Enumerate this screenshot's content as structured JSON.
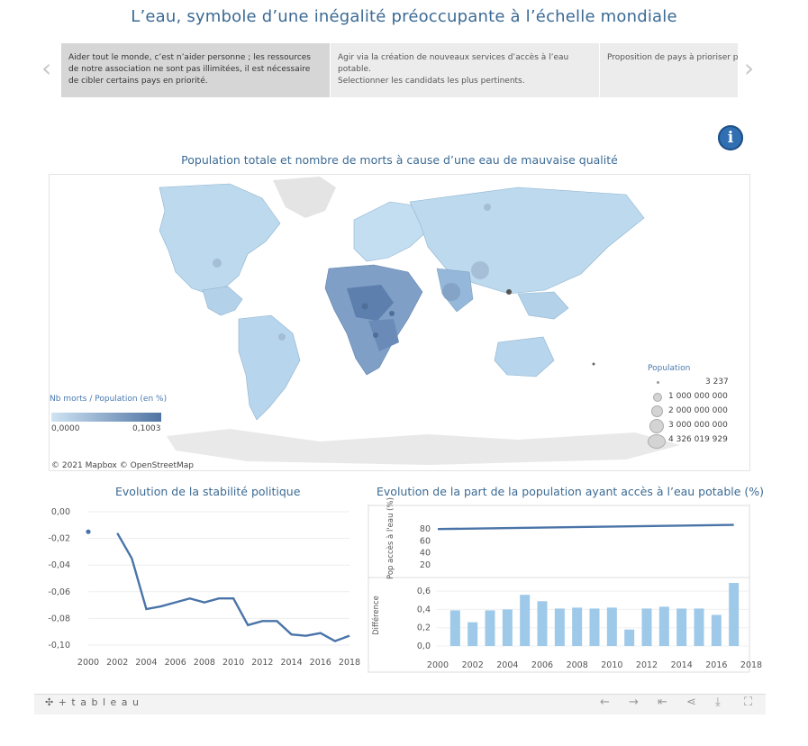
{
  "title": "L’eau, symbole d’une inégalité préoccupante à l’échelle mondiale",
  "story": {
    "prev_icon": "‹",
    "next_icon": "›",
    "points": [
      {
        "text": "Aider tout le monde, c’est n’aider personne ; les ressources de notre association ne sont pas illimitées, il est nécessaire de cibler certains pays en priorité.",
        "active": true
      },
      {
        "text": "Agir via la création de nouveaux services d’accès à l’eau potable.\nSelectionner les candidats les plus pertinents.",
        "active": false
      },
      {
        "text": "Proposition de pays à prioriser p",
        "active": false
      }
    ]
  },
  "info_icon": "i",
  "map": {
    "title": "Population totale et nombre de morts à cause d’une eau de mauvaise qualité",
    "color_legend": {
      "title": "Nb morts / Population (en %)",
      "min": "0,0000",
      "max": "0,1003"
    },
    "size_legend": {
      "title": "Population",
      "items": [
        "3 237",
        "1 000 000 000",
        "2 000 000 000",
        "3 000 000 000",
        "4 326 019 929"
      ]
    },
    "credit": "© 2021 Mapbox © OpenStreetMap"
  },
  "stability_chart": {
    "title": "Evolution de la stabilité politique",
    "y_ticks": [
      "0,00",
      "-0,02",
      "-0,04",
      "-0,06",
      "-0,08",
      "-0,10"
    ],
    "x_ticks": [
      "2000",
      "2002",
      "2004",
      "2006",
      "2008",
      "2010",
      "2012",
      "2014",
      "2016",
      "2018"
    ]
  },
  "water_chart": {
    "title": "Evolution de la part de la population ayant accès à l’eau potable (%)",
    "top_ylabel": "Pop accès à l'eau (%)",
    "bottom_ylabel": "Différence",
    "top_ticks": [
      "80",
      "60",
      "40",
      "20"
    ],
    "bottom_ticks": [
      "0,6",
      "0,4",
      "0,2",
      "0,0"
    ],
    "x_ticks": [
      "2000",
      "2002",
      "2004",
      "2006",
      "2008",
      "2010",
      "2012",
      "2014",
      "2016",
      "2018"
    ]
  },
  "chart_data": [
    {
      "type": "line",
      "title": "Evolution de la stabilité politique",
      "x": [
        2000,
        2002,
        2003,
        2004,
        2005,
        2006,
        2007,
        2008,
        2009,
        2010,
        2011,
        2012,
        2013,
        2014,
        2015,
        2016,
        2017,
        2018
      ],
      "values": [
        -0.015,
        -0.016,
        -0.035,
        -0.073,
        -0.071,
        -0.068,
        -0.065,
        -0.068,
        -0.065,
        -0.065,
        -0.085,
        -0.082,
        -0.082,
        -0.092,
        -0.093,
        -0.091,
        -0.097,
        -0.093
      ],
      "ylim": [
        -0.1,
        0.0
      ],
      "xlim": [
        2000,
        2018
      ],
      "note_gap_after_first": true
    },
    {
      "type": "line",
      "title": "",
      "ylabel": "Pop accès à l'eau (%)",
      "x": [
        2000,
        2017
      ],
      "values": [
        80,
        87
      ],
      "ylim": [
        0,
        100
      ]
    },
    {
      "type": "bar",
      "ylabel": "Différence",
      "categories": [
        "2001",
        "2002",
        "2003",
        "2004",
        "2005",
        "2006",
        "2007",
        "2008",
        "2009",
        "2010",
        "2011",
        "2012",
        "2013",
        "2014",
        "2015",
        "2016",
        "2017"
      ],
      "values": [
        0.39,
        0.26,
        0.39,
        0.4,
        0.56,
        0.49,
        0.41,
        0.42,
        0.41,
        0.42,
        0.18,
        0.41,
        0.43,
        0.41,
        0.41,
        0.34,
        0.69
      ],
      "ylim": [
        0,
        0.7
      ]
    }
  ],
  "footer": {
    "brand": "+ t a b l e a u",
    "brand_icon": "✣"
  },
  "colors": {
    "accent": "#3b6a94",
    "line": "#4a74a8",
    "bar": "#9ec9e8",
    "map_light": "#cfe4f3",
    "map_dark": "#4f73a3"
  }
}
